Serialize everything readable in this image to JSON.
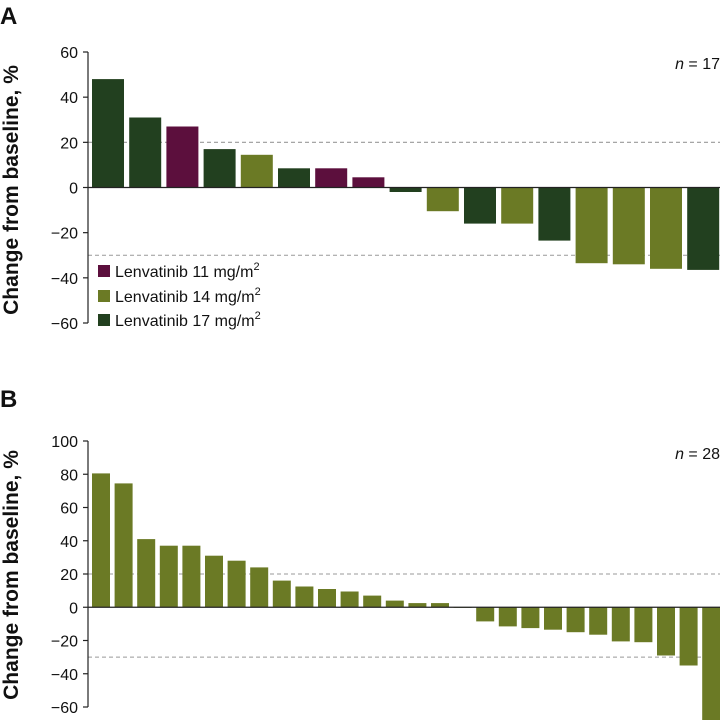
{
  "chart_data": [
    {
      "panel": "A",
      "type": "bar",
      "ylabel": "Change from baseline, %",
      "ylim": [
        -60,
        60
      ],
      "yticks": [
        60,
        40,
        20,
        0,
        -20,
        -40,
        -60
      ],
      "tick_labels": [
        "60",
        "40",
        "20",
        "0",
        "−20",
        "−40",
        "−60"
      ],
      "reference_lines": [
        20,
        -30
      ],
      "annotation": "n = 17",
      "n_prefix": "n",
      "n_suffix": " = 17",
      "legend": [
        {
          "label": "Lenvatinib 11 mg/m",
          "sup": "2",
          "color": "#5c0f3d"
        },
        {
          "label": "Lenvatinib 14 mg/m",
          "sup": "2",
          "color": "#6b7a25"
        },
        {
          "label": "Lenvatinib 17 mg/m",
          "sup": "2",
          "color": "#22401f"
        }
      ],
      "values": [
        48,
        31,
        27,
        17,
        14.5,
        8.5,
        8.5,
        4.5,
        -2,
        -10.5,
        -16,
        -16,
        -23.5,
        -33.5,
        -34,
        -36,
        -36.5
      ],
      "groups": [
        "17",
        "17",
        "11",
        "17",
        "14",
        "17",
        "11",
        "11",
        "17",
        "14",
        "17",
        "14",
        "17",
        "14",
        "14",
        "14",
        "17"
      ]
    },
    {
      "panel": "B",
      "type": "bar",
      "ylabel": "Change from baseline, %",
      "ylim": [
        -60,
        100
      ],
      "yticks": [
        100,
        80,
        60,
        40,
        20,
        0,
        -20,
        -40,
        -60
      ],
      "tick_labels": [
        "100",
        "80",
        "60",
        "40",
        "20",
        "0",
        "−20",
        "−40",
        "−60"
      ],
      "reference_lines": [
        20,
        -30
      ],
      "annotation": "n = 28",
      "n_prefix": "n",
      "n_suffix": " = 28",
      "color": "#6b7a25",
      "values": [
        80.5,
        74.5,
        41,
        37,
        37,
        31,
        28,
        24,
        16,
        12.5,
        11,
        9.5,
        7,
        4,
        2.5,
        2.5,
        0,
        -8.5,
        -11.5,
        -12.5,
        -13.5,
        -15,
        -16.5,
        -20.5,
        -21,
        -29,
        -35,
        -68
      ]
    }
  ],
  "colors": {
    "group_11": "#5c0f3d",
    "group_14": "#6b7a25",
    "group_17": "#22401f"
  }
}
